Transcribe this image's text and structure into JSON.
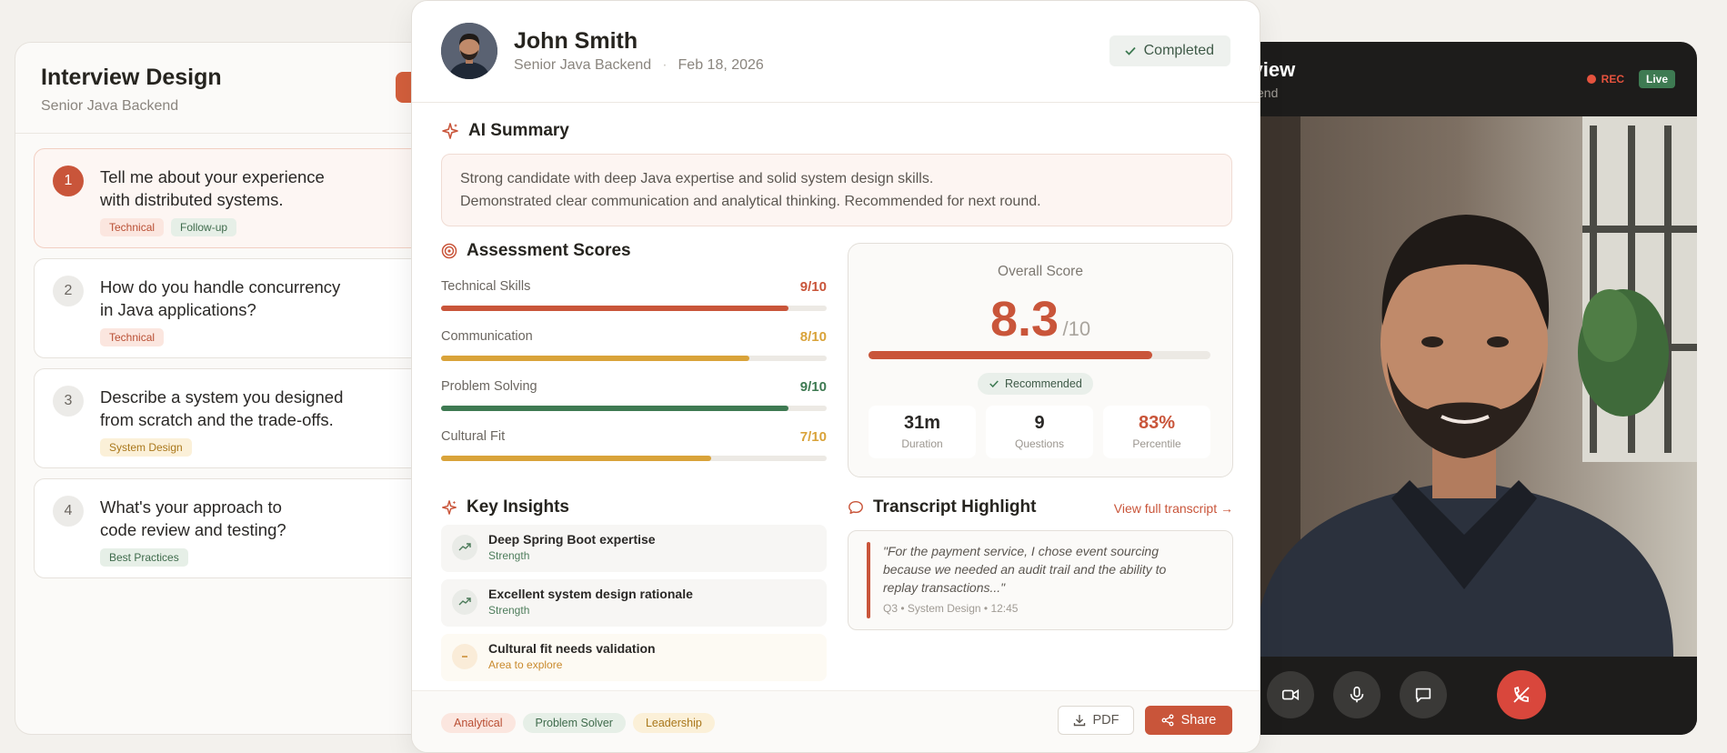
{
  "left": {
    "title": "Interview Design",
    "subtitle": "Senior Java Backend",
    "questions": [
      {
        "num": "1",
        "line1": "Tell me about your experience",
        "line2": "with distributed systems.",
        "tags": [
          "Technical",
          "Follow-up"
        ]
      },
      {
        "num": "2",
        "line1": "How do you handle concurrency",
        "line2": "in Java applications?",
        "tags": [
          "Technical"
        ]
      },
      {
        "num": "3",
        "line1": "Describe a system you designed",
        "line2": "from scratch and the trade-offs.",
        "tags": [
          "System Design"
        ]
      },
      {
        "num": "4",
        "line1": "What's your approach to",
        "line2": "code review and testing?",
        "tags": [
          "Best Practices"
        ]
      }
    ]
  },
  "video": {
    "title": "rview",
    "subtitle": "ckend",
    "rec_label": "REC",
    "live_label": "Live",
    "controls": [
      "video-icon",
      "mic-icon",
      "chat-icon",
      "end-call-icon"
    ]
  },
  "candidate": {
    "name": "John Smith",
    "role": "Senior Java Backend",
    "date": "Feb 18, 2026",
    "status": "Completed"
  },
  "summary": {
    "title": "AI Summary",
    "line1": "Strong candidate with deep Java expertise and solid system design skills.",
    "line2": "Demonstrated clear communication and analytical thinking. Recommended for next round."
  },
  "assessment": {
    "title": "Assessment Scores",
    "items": [
      {
        "label": "Technical Skills",
        "value": "9/10",
        "score": 0.9,
        "color": "#c9553a"
      },
      {
        "label": "Communication",
        "value": "8/10",
        "score": 0.8,
        "color": "#d9a33a"
      },
      {
        "label": "Problem Solving",
        "value": "9/10",
        "score": 0.9,
        "color": "#3e7a52"
      },
      {
        "label": "Cultural Fit",
        "value": "7/10",
        "score": 0.7,
        "color": "#d9a33a"
      }
    ]
  },
  "overall": {
    "label": "Overall Score",
    "score": "8.3",
    "max": "/10",
    "fraction": 0.83,
    "badge": "Recommended",
    "stats": [
      {
        "value": "31m",
        "label": "Duration",
        "color": "#2a2826"
      },
      {
        "value": "9",
        "label": "Questions",
        "color": "#2a2826"
      },
      {
        "value": "83%",
        "label": "Percentile",
        "color": "#c9553a"
      }
    ]
  },
  "insights": {
    "title": "Key Insights",
    "items": [
      {
        "title": "Deep Spring Boot expertise",
        "sub": "Strength",
        "kind": "strength"
      },
      {
        "title": "Excellent system design rationale",
        "sub": "Strength",
        "kind": "strength"
      },
      {
        "title": "Cultural fit needs validation",
        "sub": "Area to explore",
        "kind": "warn"
      }
    ]
  },
  "transcript": {
    "title": "Transcript Highlight",
    "link": "View full transcript",
    "quote_l1": "\"For the payment service, I chose event sourcing",
    "quote_l2": "because we needed an audit trail and the ability to",
    "quote_l3": "replay transactions...\"",
    "meta": "Q3 • System Design • 12:45"
  },
  "footer": {
    "tags": [
      "Analytical",
      "Problem Solver",
      "Leadership"
    ],
    "pdf": "PDF",
    "share": "Share"
  },
  "colors": {
    "accent": "#c9553a",
    "green": "#3e7a52",
    "amber": "#d9a33a"
  }
}
